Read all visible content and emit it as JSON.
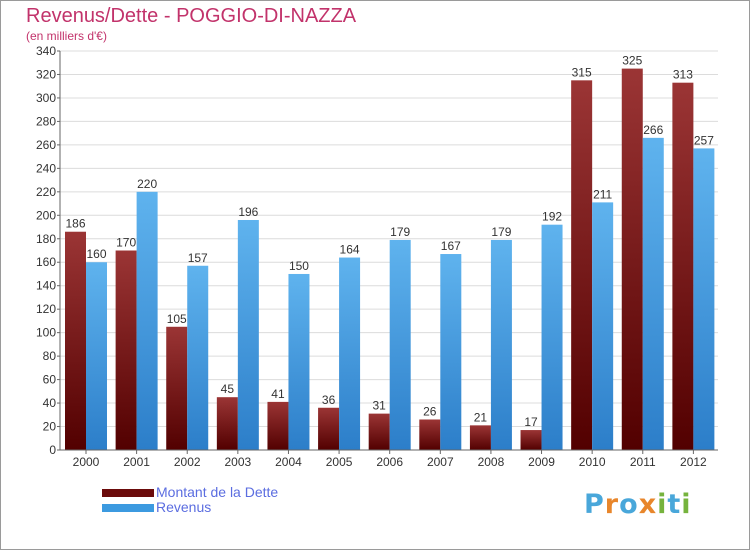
{
  "header": {
    "title": "Revenus/Dette - POGGIO-DI-NAZZA",
    "subtitle": "(en milliers d'€)"
  },
  "legend": {
    "items": [
      {
        "label": "Montant de la Dette",
        "color": "#6b0b0b"
      },
      {
        "label": "Revenus",
        "color": "#3c9ae0"
      }
    ]
  },
  "logo": {
    "text": "Proxiti",
    "letters": [
      {
        "ch": "P",
        "color": "#49a7da"
      },
      {
        "ch": "r",
        "color": "#e8862b"
      },
      {
        "ch": "o",
        "color": "#49a7da"
      },
      {
        "ch": "x",
        "color": "#e8862b"
      },
      {
        "ch": "i",
        "color": "#76b33d"
      },
      {
        "ch": "t",
        "color": "#49a7da"
      },
      {
        "ch": "i",
        "color": "#76b33d"
      }
    ]
  },
  "chart_data": {
    "type": "bar",
    "title": "Revenus/Dette - POGGIO-DI-NAZZA",
    "subtitle": "(en milliers d'€)",
    "categories": [
      "2000",
      "2001",
      "2002",
      "2003",
      "2004",
      "2005",
      "2006",
      "2007",
      "2008",
      "2009",
      "2010",
      "2011",
      "2012"
    ],
    "series": [
      {
        "name": "Montant de la Dette",
        "color": "#7a1818",
        "values": [
          186,
          170,
          105,
          45,
          41,
          36,
          31,
          26,
          21,
          17,
          315,
          325,
          313
        ]
      },
      {
        "name": "Revenus",
        "color": "#4aa3e6",
        "values": [
          160,
          220,
          157,
          196,
          150,
          164,
          179,
          167,
          179,
          192,
          211,
          266,
          257
        ]
      }
    ],
    "ylim": [
      0,
      340
    ],
    "yticks": [
      0,
      20,
      40,
      60,
      80,
      100,
      120,
      140,
      160,
      180,
      200,
      220,
      240,
      260,
      280,
      300,
      320,
      340
    ],
    "grid": true,
    "legend_position": "bottom-left"
  }
}
